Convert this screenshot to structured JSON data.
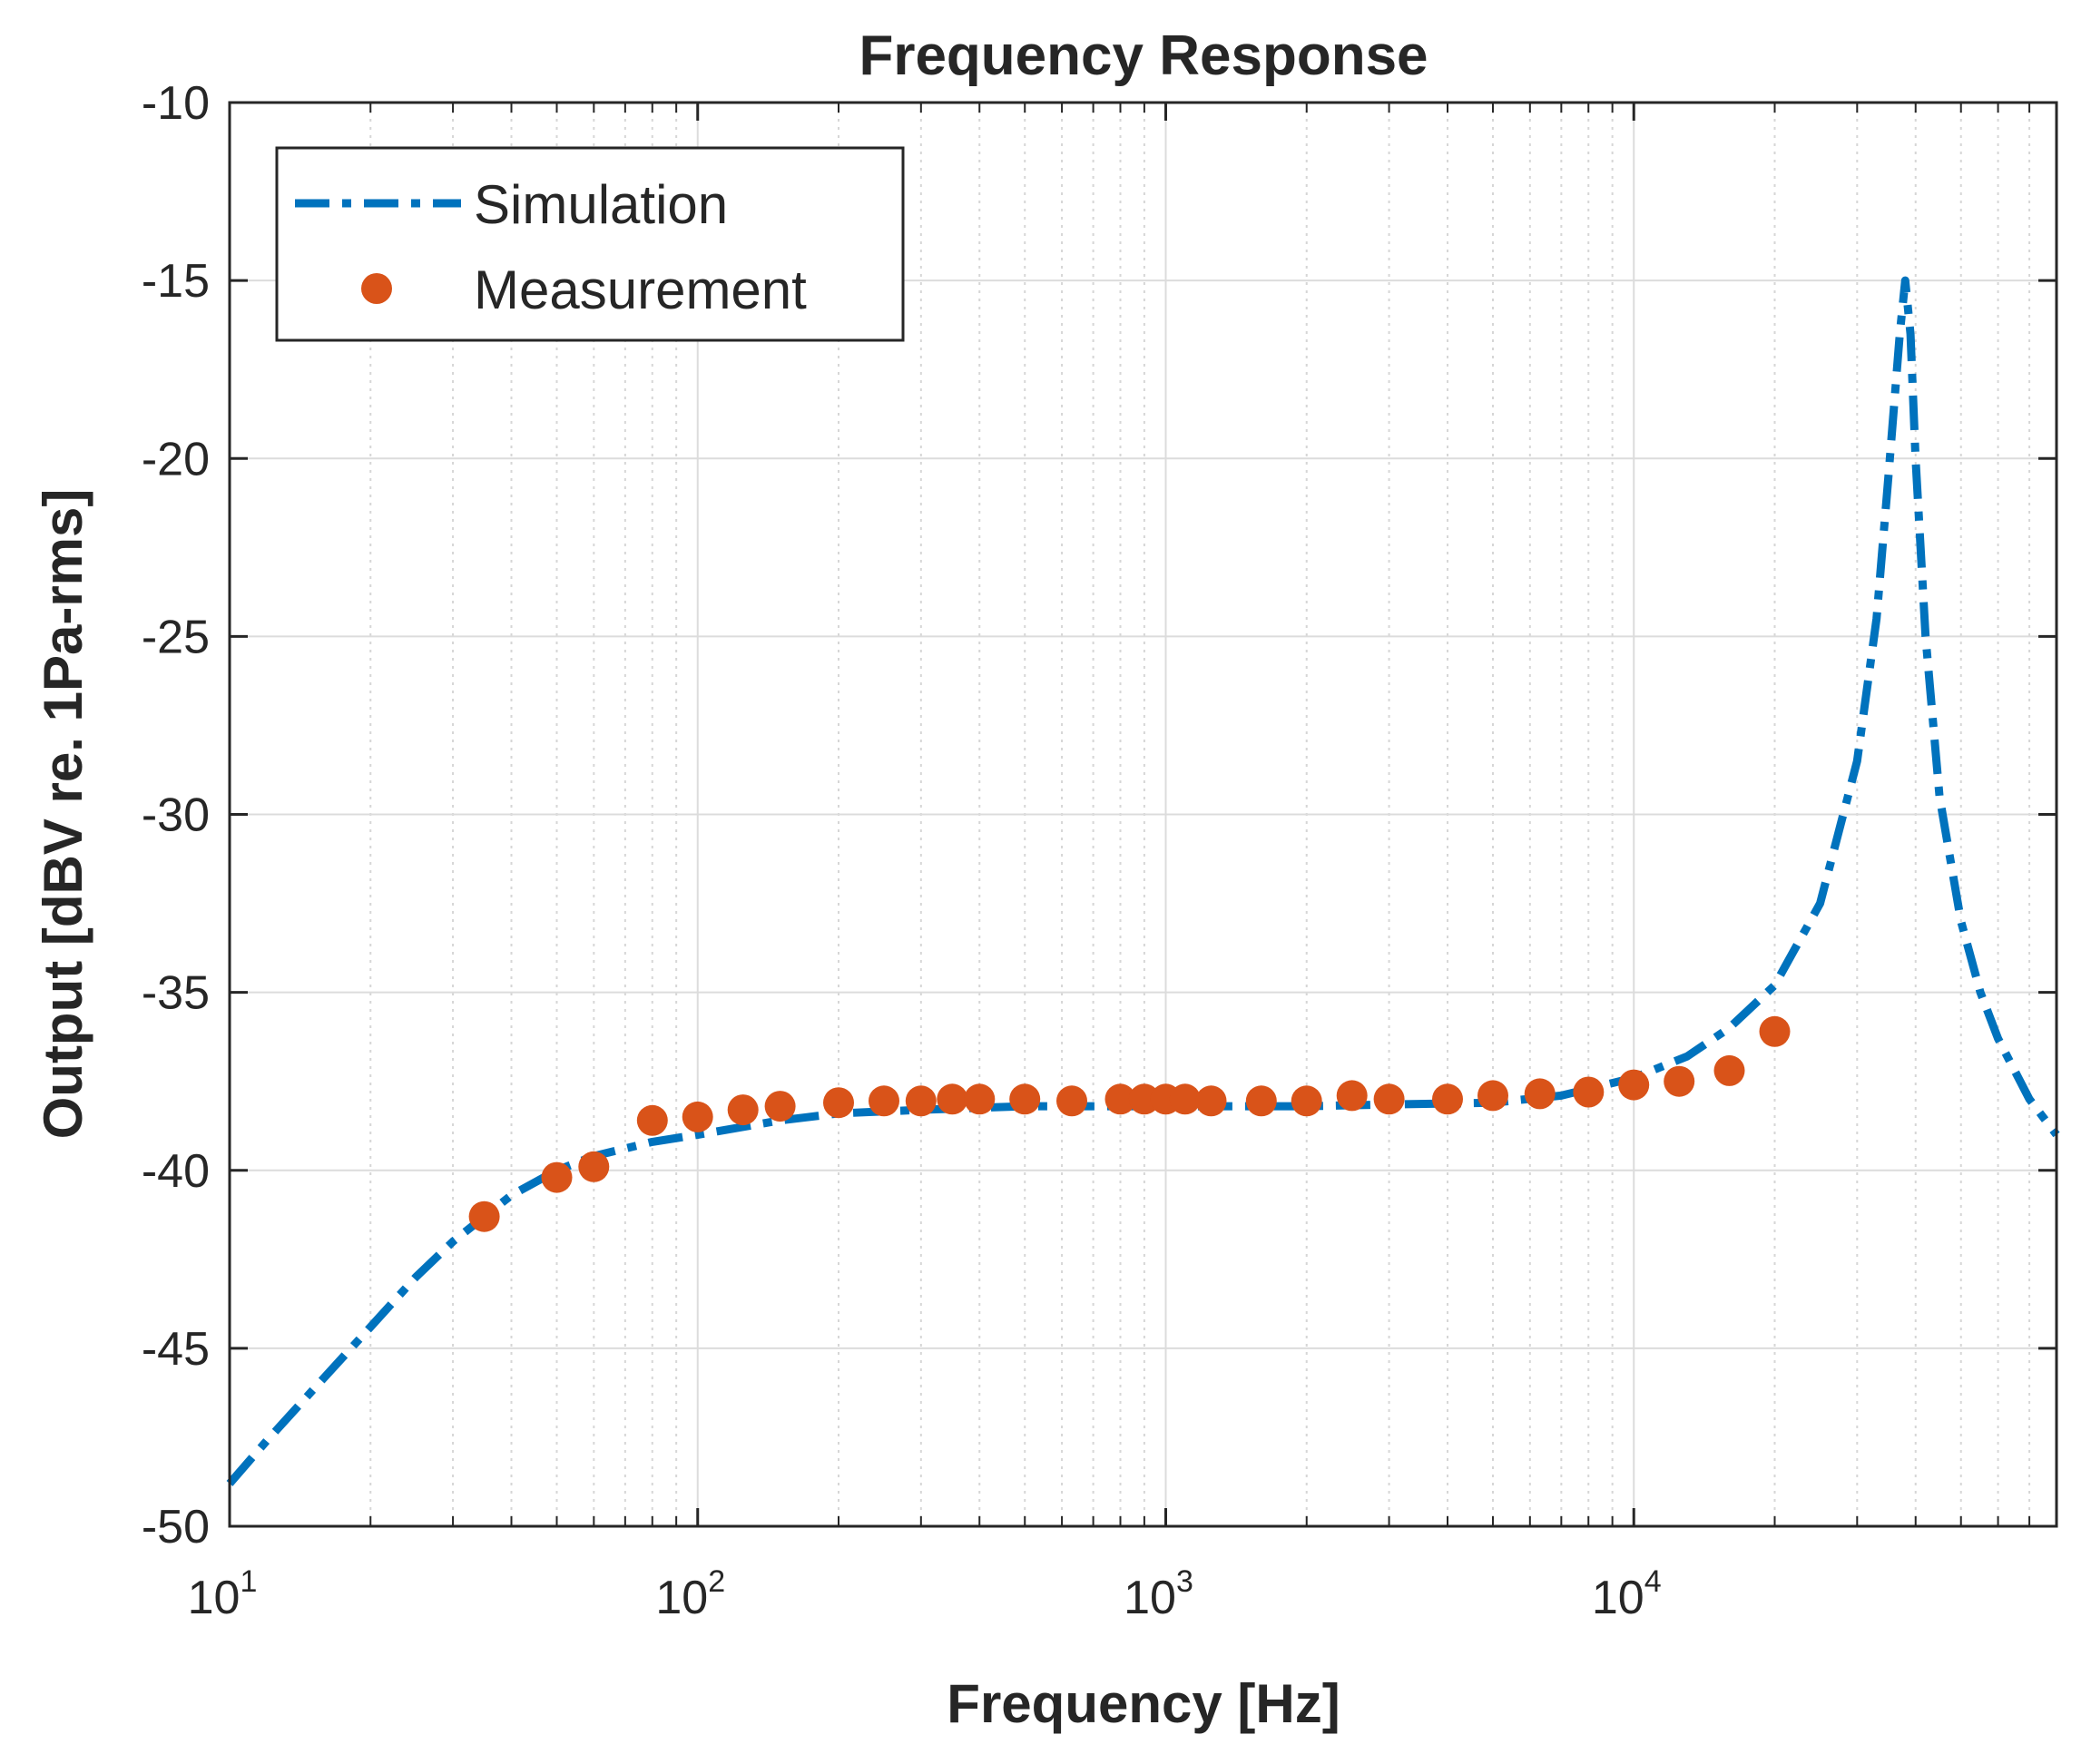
{
  "chart_data": {
    "type": "line",
    "title": "Frequency Response",
    "xlabel": "Frequency [Hz]",
    "ylabel": "Output [dBV re. 1Pa-rms]",
    "xscale": "log",
    "xlim": [
      10,
      80000
    ],
    "ylim": [
      -50,
      -10
    ],
    "grid": true,
    "legend_position": "top-left",
    "yticks": [
      -50,
      -45,
      -40,
      -35,
      -30,
      -25,
      -20,
      -15,
      -10
    ],
    "xticks": [
      {
        "base": "10",
        "exp": "1",
        "value": 10
      },
      {
        "base": "10",
        "exp": "2",
        "value": 100
      },
      {
        "base": "10",
        "exp": "3",
        "value": 1000
      },
      {
        "base": "10",
        "exp": "4",
        "value": 10000
      }
    ],
    "series": [
      {
        "name": "Simulation",
        "style": "dash-dot",
        "color": "#0072BD",
        "x": [
          10,
          12,
          15,
          20,
          25,
          30,
          40,
          50,
          60,
          80,
          100,
          150,
          200,
          300,
          500,
          1000,
          2000,
          3000,
          5000,
          7000,
          10000,
          13000,
          16000,
          20000,
          25000,
          30000,
          33000,
          35000,
          37000,
          38000,
          39000,
          40000,
          42000,
          45000,
          50000,
          55000,
          60000,
          70000,
          80000
        ],
        "values": [
          -48.8,
          -47.6,
          -46.2,
          -44.4,
          -43.0,
          -42.0,
          -40.7,
          -40.0,
          -39.6,
          -39.2,
          -39.0,
          -38.6,
          -38.4,
          -38.3,
          -38.2,
          -38.2,
          -38.2,
          -38.15,
          -38.1,
          -37.9,
          -37.4,
          -36.8,
          -36.0,
          -34.8,
          -32.5,
          -28.5,
          -24.5,
          -20.5,
          -16.5,
          -15.0,
          -16.5,
          -20.0,
          -25.0,
          -29.5,
          -33.0,
          -35.0,
          -36.3,
          -38.0,
          -39.0
        ]
      },
      {
        "name": "Measurement",
        "style": "markers",
        "color": "#D95319",
        "x": [
          35,
          50,
          60,
          80,
          100,
          125,
          150,
          200,
          250,
          300,
          350,
          400,
          500,
          630,
          800,
          900,
          1000,
          1100,
          1250,
          1600,
          2000,
          2500,
          3000,
          4000,
          5000,
          6300,
          8000,
          10000,
          12500,
          16000,
          20000
        ],
        "values": [
          -41.3,
          -40.2,
          -39.9,
          -38.6,
          -38.5,
          -38.3,
          -38.2,
          -38.1,
          -38.05,
          -38.05,
          -38.0,
          -38.0,
          -38.0,
          -38.05,
          -38.0,
          -38.0,
          -38.0,
          -38.0,
          -38.05,
          -38.05,
          -38.05,
          -37.9,
          -38.0,
          -38.0,
          -37.9,
          -37.85,
          -37.8,
          -37.6,
          -37.5,
          -37.2,
          -36.1
        ]
      }
    ]
  }
}
